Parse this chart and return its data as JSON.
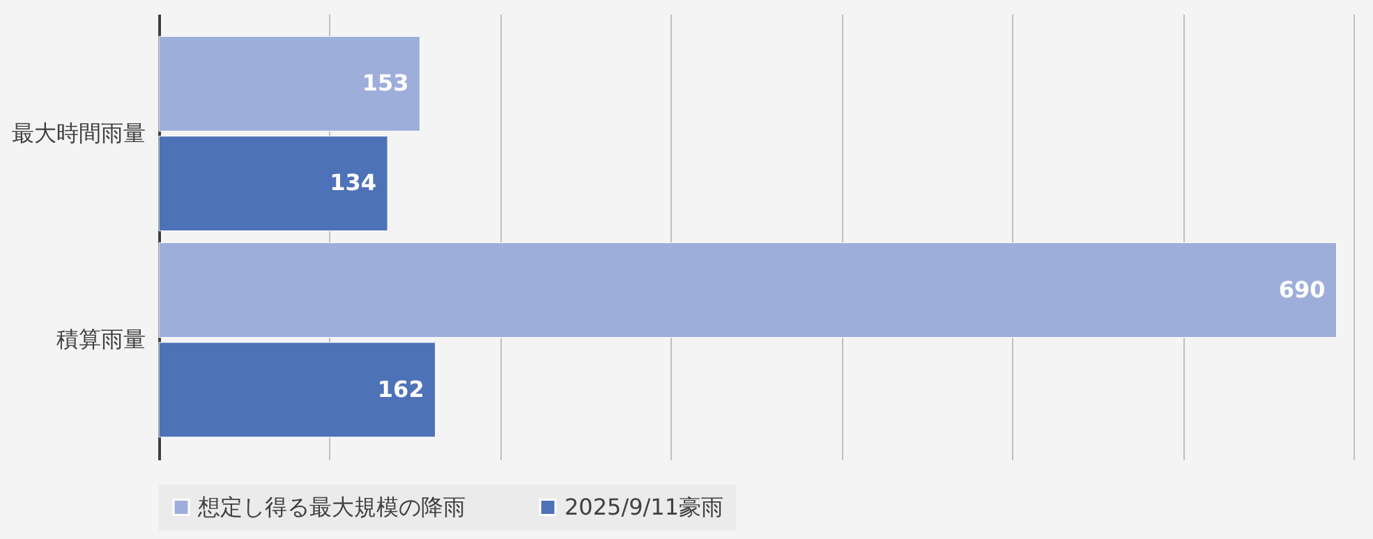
{
  "chart_data": {
    "type": "bar",
    "orientation": "horizontal",
    "categories": [
      "最大時間雨量",
      "積算雨量"
    ],
    "series": [
      {
        "name": "想定し得る最大規模の降雨",
        "color": "#9eaedb",
        "values": [
          153,
          690
        ]
      },
      {
        "name": "2025/9/11豪雨",
        "color": "#4e72b8",
        "values": [
          134,
          162
        ]
      }
    ],
    "xlim": [
      0,
      700
    ],
    "xticks": [
      {
        "value": 0,
        "label": null
      },
      {
        "value": 100,
        "label": null
      },
      {
        "value": 200,
        "label": null
      },
      {
        "value": 300,
        "label": null
      },
      {
        "value": 400,
        "label": null
      },
      {
        "value": 500,
        "label": null
      },
      {
        "value": 600,
        "label": null
      },
      {
        "value": 700,
        "label": null
      }
    ],
    "tick_labels": "y",
    "grid": "x",
    "legend": "bottom",
    "data_labels": true
  }
}
